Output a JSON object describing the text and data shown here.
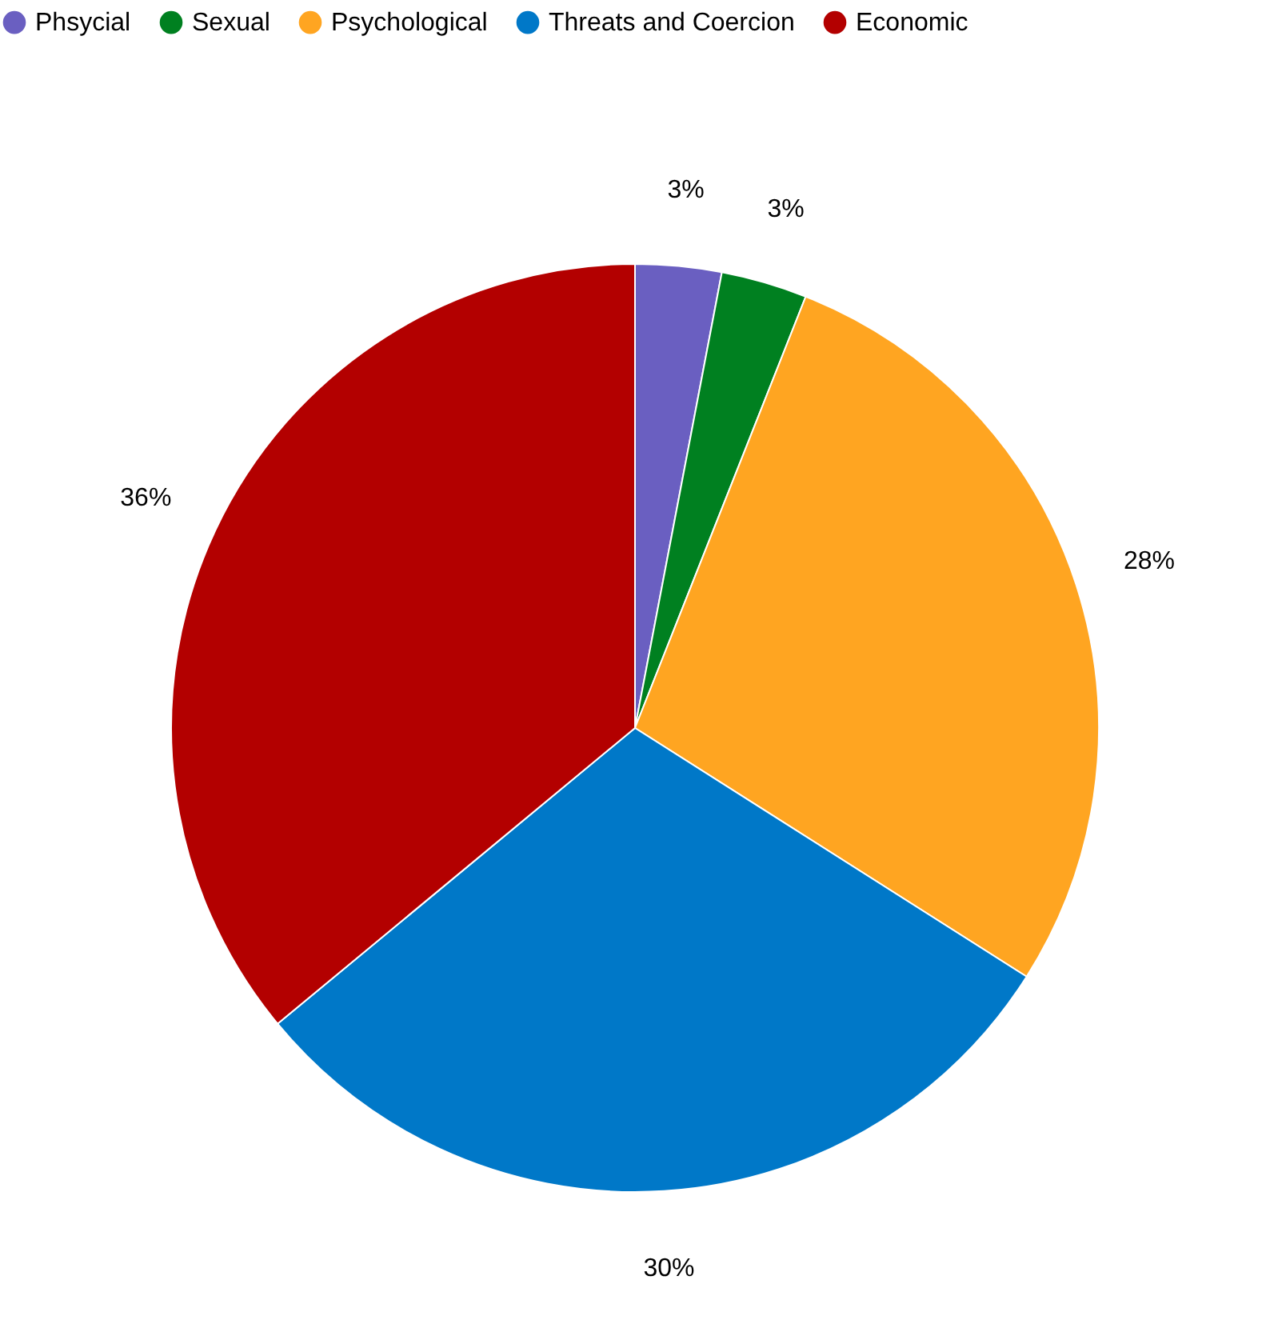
{
  "chart_data": {
    "type": "pie",
    "categories": [
      "Phsycial",
      "Sexual",
      "Psychological",
      "Threats and Coercion",
      "Economic"
    ],
    "values": [
      3,
      3,
      28,
      30,
      36
    ],
    "colors": [
      "#6a5fc1",
      "#008020",
      "#ffa521",
      "#0078c8",
      "#b30000"
    ],
    "value_labels": [
      "3%",
      "3%",
      "28%",
      "30%",
      "36%"
    ],
    "legend": "top"
  }
}
